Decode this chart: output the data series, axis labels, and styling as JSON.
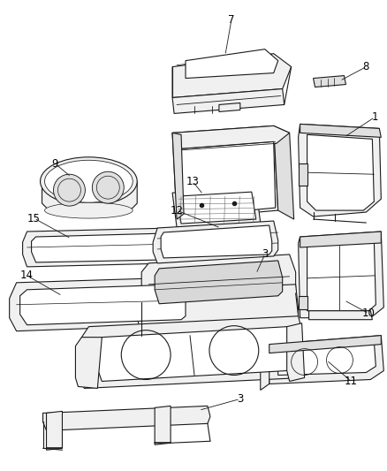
{
  "background_color": "#ffffff",
  "figure_width": 4.38,
  "figure_height": 5.33,
  "dpi": 100,
  "line_color": "#1a1a1a",
  "line_width": 0.8,
  "fill_color": "#ffffff",
  "fill_light": "#f0f0f0",
  "fill_mid": "#e0e0e0",
  "label_fontsize": 8.5
}
